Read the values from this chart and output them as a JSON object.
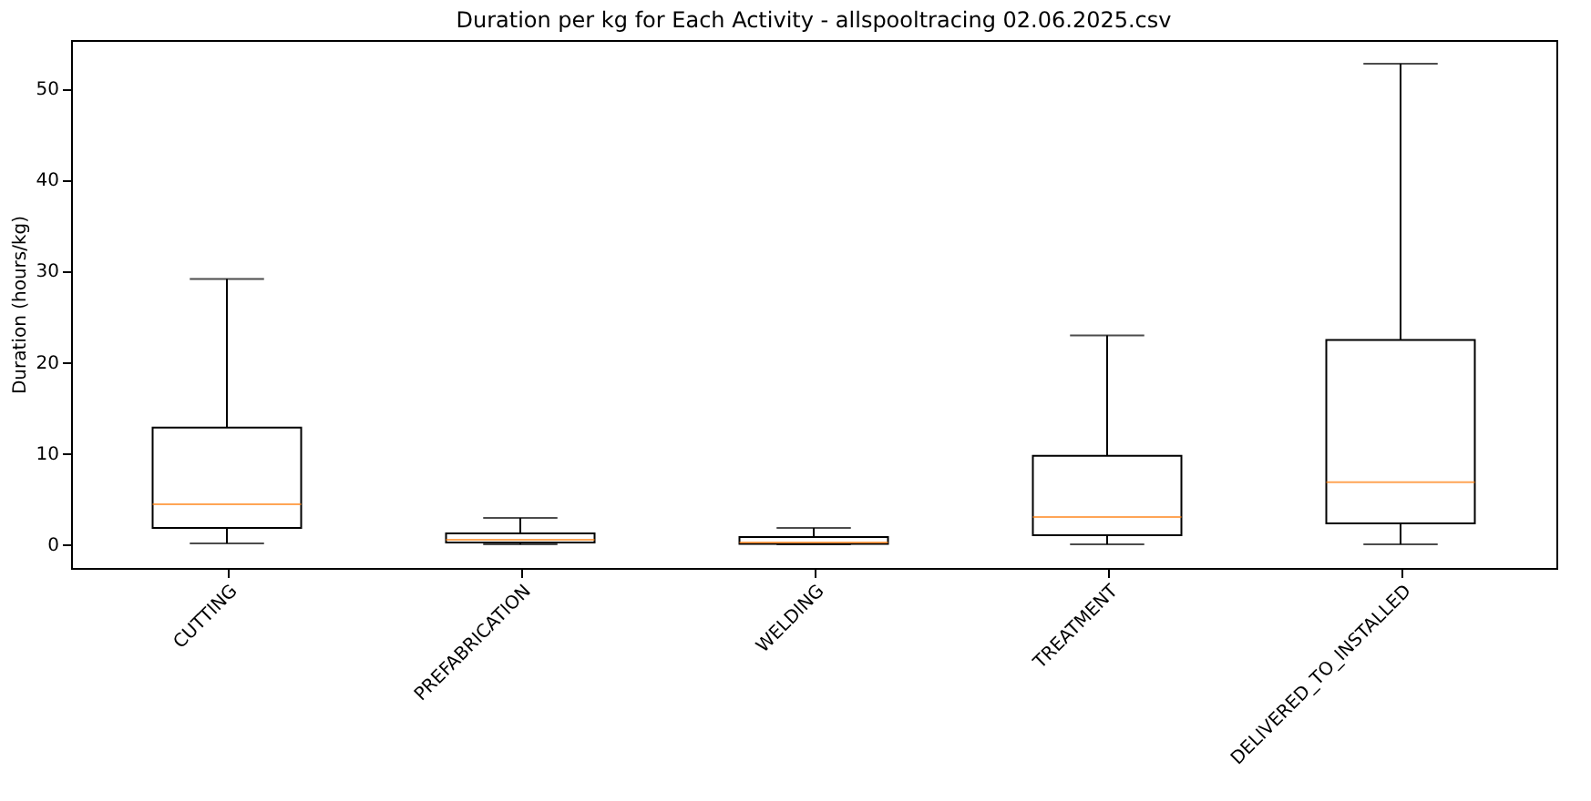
{
  "chart_data": {
    "type": "box",
    "title": "Duration per kg for Each Activity - allspooltracing 02.06.2025.csv",
    "ylabel": "Duration (hours/kg)",
    "categories": [
      "CUTTING",
      "PREFABRICATION",
      "WELDING",
      "TREATMENT",
      "DELIVERED_TO_INSTALLED"
    ],
    "boxes": [
      {
        "low": 0.1,
        "q1": 1.8,
        "median": 4.4,
        "q3": 12.8,
        "high": 29.1
      },
      {
        "low": 0,
        "q1": 0.2,
        "median": 0.5,
        "q3": 1.2,
        "high": 2.9
      },
      {
        "low": 0,
        "q1": 0.05,
        "median": 0.2,
        "q3": 0.8,
        "high": 1.8
      },
      {
        "low": 0,
        "q1": 1.0,
        "median": 3.0,
        "q3": 9.7,
        "high": 22.9
      },
      {
        "low": 0,
        "q1": 2.3,
        "median": 6.8,
        "q3": 22.4,
        "high": 52.7
      }
    ],
    "ylim": [
      -2.6,
      55.3
    ],
    "yticks": [
      0,
      10,
      20,
      30,
      40,
      50
    ],
    "grid": false
  }
}
